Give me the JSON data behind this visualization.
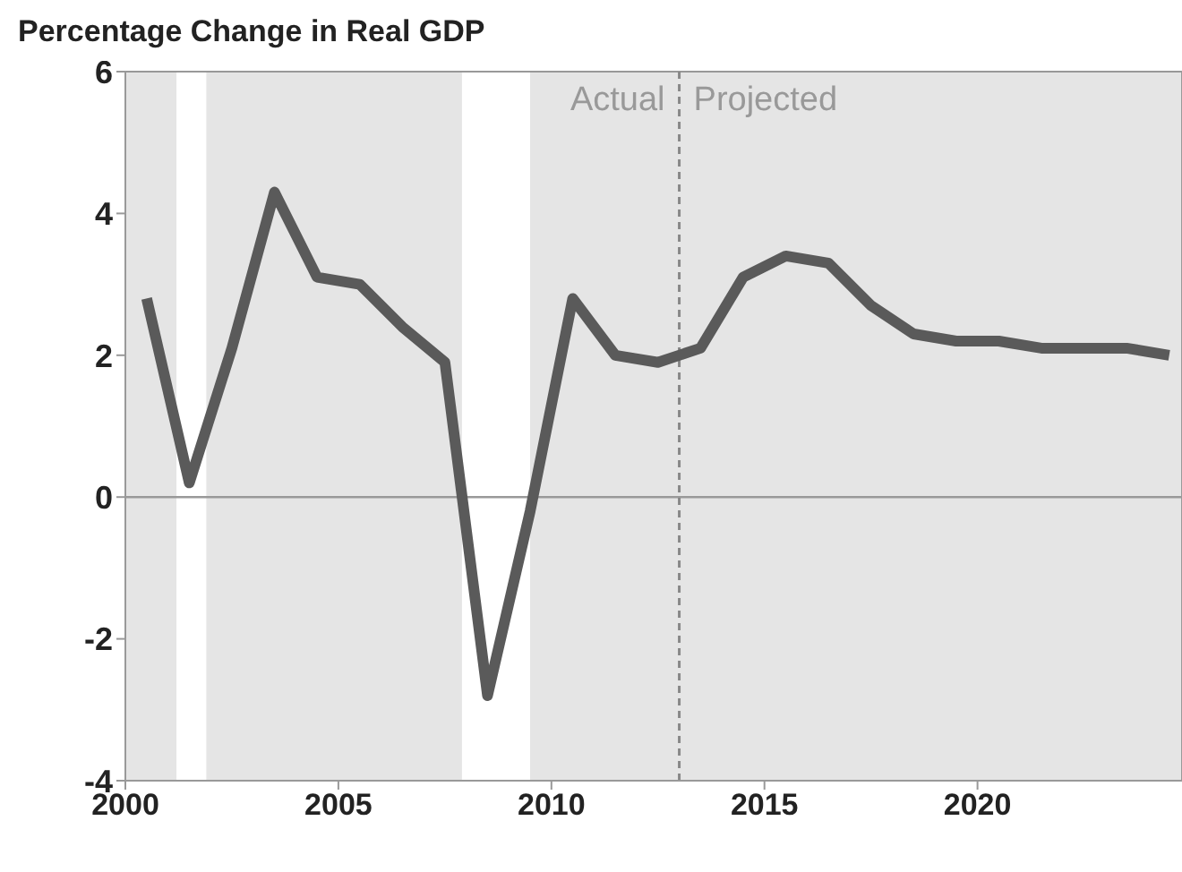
{
  "chart_data": {
    "type": "line",
    "title": "Percentage Change in Real GDP",
    "x": [
      2000.5,
      2001.5,
      2002.5,
      2003.5,
      2004.5,
      2005.5,
      2006.5,
      2007.5,
      2008.5,
      2009.5,
      2010.5,
      2011.5,
      2012.5,
      2013.5,
      2014.5,
      2015.5,
      2016.5,
      2017.5,
      2018.5,
      2019.5,
      2020.5,
      2021.5,
      2022.5,
      2023.5,
      2024.5
    ],
    "series": [
      {
        "color": "#5a5a5a",
        "values": [
          2.8,
          0.2,
          2.1,
          4.3,
          3.1,
          3.0,
          2.4,
          1.9,
          -2.8,
          -0.2,
          2.8,
          2.0,
          1.9,
          2.1,
          3.1,
          3.4,
          3.3,
          2.7,
          2.3,
          2.2,
          2.2,
          2.1,
          2.1,
          2.1,
          2.0
        ]
      }
    ],
    "xlim": [
      2000,
      2024.8
    ],
    "xticks": [
      2000,
      2005,
      2010,
      2015,
      2020
    ],
    "ylim": [
      -4,
      6
    ],
    "yticks": [
      -4,
      -2,
      0,
      2,
      4,
      6
    ],
    "ref_lines": [
      {
        "axis": "y",
        "value": 0,
        "color": "#999999",
        "line_style": "solid"
      },
      {
        "axis": "x",
        "value": 2013,
        "color": "#888888",
        "line_style": "dashed"
      }
    ],
    "bands": [
      {
        "axis": "x",
        "from": 2001.2,
        "to": 2001.9,
        "color": "#ffffff"
      },
      {
        "axis": "x",
        "from": 2007.9,
        "to": 2009.5,
        "color": "#ffffff"
      }
    ],
    "annotations": [
      "Actual",
      "Projected"
    ],
    "grid": false,
    "marker": "none",
    "line_style": "solid"
  }
}
